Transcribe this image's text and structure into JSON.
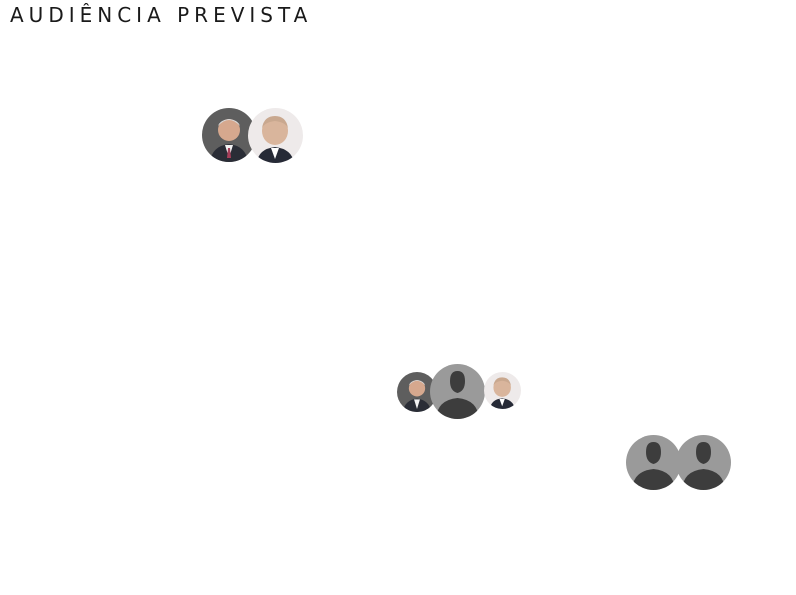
{
  "title": "AUDIÊNCIA PREVISTA",
  "colors": {
    "background": "#ffffff",
    "title_text": "#1a1a1a",
    "placeholder_bg": "#9a9a9a",
    "placeholder_silhouette": "#3d3d3d"
  },
  "avatars": [
    {
      "kind": "photo",
      "icon": "person-photo-icon"
    },
    {
      "kind": "photo",
      "icon": "person-photo-icon"
    },
    {
      "kind": "photo",
      "icon": "person-photo-icon"
    },
    {
      "kind": "placeholder",
      "icon": "person-silhouette-icon"
    },
    {
      "kind": "photo",
      "icon": "person-photo-icon"
    },
    {
      "kind": "placeholder",
      "icon": "person-silhouette-icon"
    },
    {
      "kind": "placeholder",
      "icon": "person-silhouette-icon"
    }
  ]
}
